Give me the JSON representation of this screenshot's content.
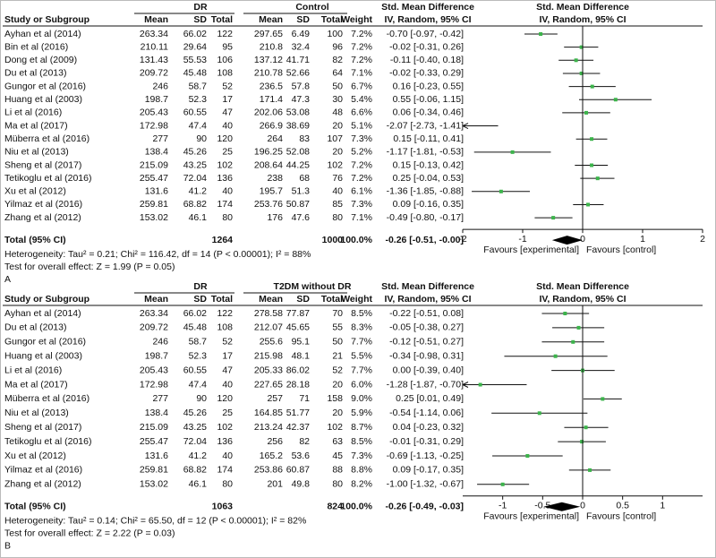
{
  "chart_data": [
    {
      "type": "forest",
      "panel_label": "A",
      "group_headers": [
        "DR",
        "Control"
      ],
      "effect_header": "Std. Mean Difference",
      "effect_subheader": "IV, Random, 95% CI",
      "plot_header": "Std. Mean Difference",
      "plot_subheader": "IV, Random, 95% CI",
      "column_headers": [
        "Study or Subgroup",
        "Mean",
        "SD",
        "Total",
        "Mean",
        "SD",
        "Total",
        "Weight"
      ],
      "rows": [
        {
          "study": "Ayhan et al (2014)",
          "mean1": 263.34,
          "sd1": 66.02,
          "n1": 122,
          "mean2": 297.65,
          "sd2": 6.49,
          "n2": 100,
          "weight": "7.2%",
          "ci_label": "-0.70 [-0.97, -0.42]",
          "smd": -0.7,
          "lower": -0.97,
          "upper": -0.42
        },
        {
          "study": "Bin et al (2016)",
          "mean1": 210.11,
          "sd1": 29.64,
          "n1": 95,
          "mean2": 210.8,
          "sd2": 32.4,
          "n2": 96,
          "weight": "7.2%",
          "ci_label": "-0.02 [-0.31, 0.26]",
          "smd": -0.02,
          "lower": -0.31,
          "upper": 0.26
        },
        {
          "study": "Dong et al (2009)",
          "mean1": 131.43,
          "sd1": 55.53,
          "n1": 106,
          "mean2": 137.12,
          "sd2": 41.71,
          "n2": 82,
          "weight": "7.2%",
          "ci_label": "-0.11 [-0.40, 0.18]",
          "smd": -0.11,
          "lower": -0.4,
          "upper": 0.18
        },
        {
          "study": "Du et al (2013)",
          "mean1": 209.72,
          "sd1": 45.48,
          "n1": 108,
          "mean2": 210.78,
          "sd2": 52.66,
          "n2": 64,
          "weight": "7.1%",
          "ci_label": "-0.02 [-0.33, 0.29]",
          "smd": -0.02,
          "lower": -0.33,
          "upper": 0.29
        },
        {
          "study": "Gungor et al (2016)",
          "mean1": 246,
          "sd1": 58.7,
          "n1": 52,
          "mean2": 236.5,
          "sd2": 57.8,
          "n2": 50,
          "weight": "6.7%",
          "ci_label": "0.16 [-0.23, 0.55]",
          "smd": 0.16,
          "lower": -0.23,
          "upper": 0.55
        },
        {
          "study": "Huang et al (2003)",
          "mean1": 198.7,
          "sd1": 52.3,
          "n1": 17,
          "mean2": 171.4,
          "sd2": 47.3,
          "n2": 30,
          "weight": "5.4%",
          "ci_label": "0.55 [-0.06, 1.15]",
          "smd": 0.55,
          "lower": -0.06,
          "upper": 1.15
        },
        {
          "study": "Li et al (2016)",
          "mean1": 205.43,
          "sd1": 60.55,
          "n1": 47,
          "mean2": 202.06,
          "sd2": 53.08,
          "n2": 48,
          "weight": "6.6%",
          "ci_label": "0.06 [-0.34, 0.46]",
          "smd": 0.06,
          "lower": -0.34,
          "upper": 0.46
        },
        {
          "study": "Ma et al (2017)",
          "mean1": 172.98,
          "sd1": 47.4,
          "n1": 40,
          "mean2": 266.9,
          "sd2": 38.69,
          "n2": 20,
          "weight": "5.1%",
          "ci_label": "-2.07 [-2.73, -1.41]",
          "smd": -2.07,
          "lower": -2.73,
          "upper": -1.41
        },
        {
          "study": "Müberra et al (2016)",
          "mean1": 277,
          "sd1": 90,
          "n1": 120,
          "mean2": 264,
          "sd2": 83,
          "n2": 107,
          "weight": "7.3%",
          "ci_label": "0.15 [-0.11, 0.41]",
          "smd": 0.15,
          "lower": -0.11,
          "upper": 0.41
        },
        {
          "study": "Niu et al (2013)",
          "mean1": 138.4,
          "sd1": 45.26,
          "n1": 25,
          "mean2": 196.25,
          "sd2": 52.08,
          "n2": 20,
          "weight": "5.2%",
          "ci_label": "-1.17 [-1.81, -0.53]",
          "smd": -1.17,
          "lower": -1.81,
          "upper": -0.53
        },
        {
          "study": "Sheng et al (2017)",
          "mean1": 215.09,
          "sd1": 43.25,
          "n1": 102,
          "mean2": 208.64,
          "sd2": 44.25,
          "n2": 102,
          "weight": "7.2%",
          "ci_label": "0.15 [-0.13, 0.42]",
          "smd": 0.15,
          "lower": -0.13,
          "upper": 0.42
        },
        {
          "study": "Tetikoglu et al (2016)",
          "mean1": 255.47,
          "sd1": 72.04,
          "n1": 136,
          "mean2": 238,
          "sd2": 68,
          "n2": 76,
          "weight": "7.2%",
          "ci_label": "0.25 [-0.04, 0.53]",
          "smd": 0.25,
          "lower": -0.04,
          "upper": 0.53
        },
        {
          "study": "Xu et al (2012)",
          "mean1": 131.6,
          "sd1": 41.2,
          "n1": 40,
          "mean2": 195.7,
          "sd2": 51.3,
          "n2": 40,
          "weight": "6.1%",
          "ci_label": "-1.36 [-1.85, -0.88]",
          "smd": -1.36,
          "lower": -1.85,
          "upper": -0.88
        },
        {
          "study": "Yilmaz et al (2016)",
          "mean1": 259.81,
          "sd1": 68.82,
          "n1": 174,
          "mean2": 253.76,
          "sd2": 50.87,
          "n2": 85,
          "weight": "7.3%",
          "ci_label": "0.09 [-0.16, 0.35]",
          "smd": 0.09,
          "lower": -0.16,
          "upper": 0.35
        },
        {
          "study": "Zhang et al (2012)",
          "mean1": 153.02,
          "sd1": 46.1,
          "n1": 80,
          "mean2": 176,
          "sd2": 47.6,
          "n2": 80,
          "weight": "7.1%",
          "ci_label": "-0.49 [-0.80, -0.17]",
          "smd": -0.49,
          "lower": -0.8,
          "upper": -0.17
        }
      ],
      "total": {
        "label": "Total (95% CI)",
        "n1": 1264,
        "n2": 1000,
        "weight": "100.0%",
        "ci_label": "-0.26 [-0.51, -0.00]",
        "smd": -0.26,
        "lower": -0.51,
        "upper": -0.0
      },
      "heterogeneity": "Heterogeneity: Tau² = 0.21; Chi² = 116.42, df = 14 (P < 0.00001); I² = 88%",
      "overall_effect": "Test for overall effect: Z = 1.99 (P = 0.05)",
      "xlim": [
        -2,
        2
      ],
      "xticks": [
        -2,
        -1,
        0,
        1,
        2
      ],
      "favours_left": "Favours [experimental]",
      "favours_right": "Favours [control]",
      "point_color": "#3cb44b",
      "diamond_color": "#000000"
    },
    {
      "type": "forest",
      "panel_label": "B",
      "group_headers": [
        "DR",
        "T2DM without DR"
      ],
      "effect_header": "Std. Mean Difference",
      "effect_subheader": "IV, Random, 95% CI",
      "plot_header": "Std. Mean Difference",
      "plot_subheader": "IV, Random, 95% CI",
      "column_headers": [
        "Study or Subgroup",
        "Mean",
        "SD",
        "Total",
        "Mean",
        "SD",
        "Total",
        "Weight"
      ],
      "rows": [
        {
          "study": "Ayhan et al (2014)",
          "mean1": 263.34,
          "sd1": 66.02,
          "n1": 122,
          "mean2": 278.58,
          "sd2": 77.87,
          "n2": 70,
          "weight": "8.5%",
          "ci_label": "-0.22 [-0.51, 0.08]",
          "smd": -0.22,
          "lower": -0.51,
          "upper": 0.08
        },
        {
          "study": "Du et al (2013)",
          "mean1": 209.72,
          "sd1": 45.48,
          "n1": 108,
          "mean2": 212.07,
          "sd2": 45.65,
          "n2": 55,
          "weight": "8.3%",
          "ci_label": "-0.05 [-0.38, 0.27]",
          "smd": -0.05,
          "lower": -0.38,
          "upper": 0.27
        },
        {
          "study": "Gungor et al (2016)",
          "mean1": 246,
          "sd1": 58.7,
          "n1": 52,
          "mean2": 255.6,
          "sd2": 95.1,
          "n2": 50,
          "weight": "7.7%",
          "ci_label": "-0.12 [-0.51, 0.27]",
          "smd": -0.12,
          "lower": -0.51,
          "upper": 0.27
        },
        {
          "study": "Huang et al (2003)",
          "mean1": 198.7,
          "sd1": 52.3,
          "n1": 17,
          "mean2": 215.98,
          "sd2": 48.1,
          "n2": 21,
          "weight": "5.5%",
          "ci_label": "-0.34 [-0.98, 0.31]",
          "smd": -0.34,
          "lower": -0.98,
          "upper": 0.31
        },
        {
          "study": "Li et al (2016)",
          "mean1": 205.43,
          "sd1": 60.55,
          "n1": 47,
          "mean2": 205.33,
          "sd2": 86.02,
          "n2": 52,
          "weight": "7.7%",
          "ci_label": "0.00 [-0.39, 0.40]",
          "smd": 0.0,
          "lower": -0.39,
          "upper": 0.4
        },
        {
          "study": "Ma et al (2017)",
          "mean1": 172.98,
          "sd1": 47.4,
          "n1": 40,
          "mean2": 227.65,
          "sd2": 28.18,
          "n2": 20,
          "weight": "6.0%",
          "ci_label": "-1.28 [-1.87, -0.70]",
          "smd": -1.28,
          "lower": -1.87,
          "upper": -0.7
        },
        {
          "study": "Müberra et al (2016)",
          "mean1": 277,
          "sd1": 90,
          "n1": 120,
          "mean2": 257,
          "sd2": 71,
          "n2": 158,
          "weight": "9.0%",
          "ci_label": "0.25 [0.01, 0.49]",
          "smd": 0.25,
          "lower": 0.01,
          "upper": 0.49
        },
        {
          "study": "Niu et al (2013)",
          "mean1": 138.4,
          "sd1": 45.26,
          "n1": 25,
          "mean2": 164.85,
          "sd2": 51.77,
          "n2": 20,
          "weight": "5.9%",
          "ci_label": "-0.54 [-1.14, 0.06]",
          "smd": -0.54,
          "lower": -1.14,
          "upper": 0.06
        },
        {
          "study": "Sheng et al (2017)",
          "mean1": 215.09,
          "sd1": 43.25,
          "n1": 102,
          "mean2": 213.24,
          "sd2": 42.37,
          "n2": 102,
          "weight": "8.7%",
          "ci_label": "0.04 [-0.23, 0.32]",
          "smd": 0.04,
          "lower": -0.23,
          "upper": 0.32
        },
        {
          "study": "Tetikoglu et al (2016)",
          "mean1": 255.47,
          "sd1": 72.04,
          "n1": 136,
          "mean2": 256,
          "sd2": 82,
          "n2": 63,
          "weight": "8.5%",
          "ci_label": "-0.01 [-0.31, 0.29]",
          "smd": -0.01,
          "lower": -0.31,
          "upper": 0.29
        },
        {
          "study": "Xu et al (2012)",
          "mean1": 131.6,
          "sd1": 41.2,
          "n1": 40,
          "mean2": 165.2,
          "sd2": 53.6,
          "n2": 45,
          "weight": "7.3%",
          "ci_label": "-0.69 [-1.13, -0.25]",
          "smd": -0.69,
          "lower": -1.13,
          "upper": -0.25
        },
        {
          "study": "Yilmaz et al (2016)",
          "mean1": 259.81,
          "sd1": 68.82,
          "n1": 174,
          "mean2": 253.86,
          "sd2": 60.87,
          "n2": 88,
          "weight": "8.8%",
          "ci_label": "0.09 [-0.17, 0.35]",
          "smd": 0.09,
          "lower": -0.17,
          "upper": 0.35
        },
        {
          "study": "Zhang et al (2012)",
          "mean1": 153.02,
          "sd1": 46.1,
          "n1": 80,
          "mean2": 201,
          "sd2": 49.8,
          "n2": 80,
          "weight": "8.2%",
          "ci_label": "-1.00 [-1.32, -0.67]",
          "smd": -1.0,
          "lower": -1.32,
          "upper": -0.67
        }
      ],
      "total": {
        "label": "Total (95% CI)",
        "n1": 1063,
        "n2": 824,
        "weight": "100.0%",
        "ci_label": "-0.26 [-0.49, -0.03]",
        "smd": -0.26,
        "lower": -0.49,
        "upper": -0.03
      },
      "heterogeneity": "Heterogeneity: Tau² = 0.14; Chi² = 65.50, df = 12 (P < 0.00001); I² = 82%",
      "overall_effect": "Test for overall effect: Z = 2.22 (P = 0.03)",
      "xlim": [
        -1.5,
        1.5
      ],
      "xticks": [
        -1,
        -0.5,
        0,
        0.5,
        1
      ],
      "favours_left": "Favours [experimental]",
      "favours_right": "Favours [control]",
      "point_color": "#3cb44b",
      "diamond_color": "#000000"
    }
  ]
}
